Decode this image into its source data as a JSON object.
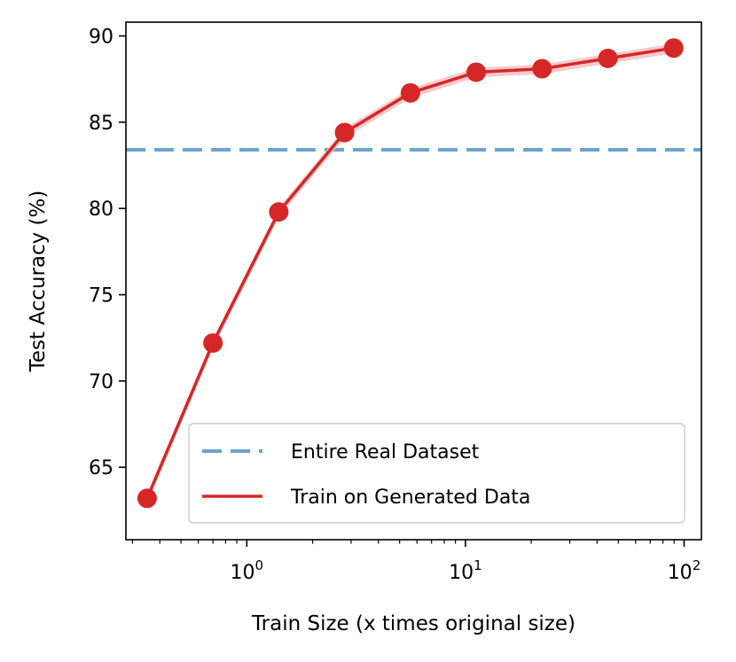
{
  "chart_data": {
    "type": "line",
    "xlabel": "Train Size (x times original size)",
    "ylabel": "Test Accuracy (%)",
    "xscale": "log",
    "xlim": [
      0.28,
      120
    ],
    "ylim": [
      60.8,
      90.8
    ],
    "x_ticks": [
      {
        "value": 1,
        "base": "10",
        "exp": "0"
      },
      {
        "value": 10,
        "base": "10",
        "exp": "1"
      },
      {
        "value": 100,
        "base": "10",
        "exp": "2"
      }
    ],
    "y_ticks": [
      65,
      70,
      75,
      80,
      85,
      90
    ],
    "grid": false,
    "legend_position": "lower-right",
    "series": [
      {
        "name": "Train on Generated Data",
        "color": "#d62728",
        "band_color": "#f2b8b9",
        "x": [
          0.35,
          0.7,
          1.4,
          2.8,
          5.6,
          11.2,
          22.4,
          44.8,
          89.6
        ],
        "y": [
          63.2,
          72.2,
          79.8,
          84.4,
          86.7,
          87.9,
          88.1,
          88.7,
          89.3
        ]
      }
    ],
    "reference_lines": [
      {
        "name": "Entire Real Dataset",
        "y": 83.4,
        "color": "#6ba3d0",
        "style": "dashed"
      }
    ]
  }
}
